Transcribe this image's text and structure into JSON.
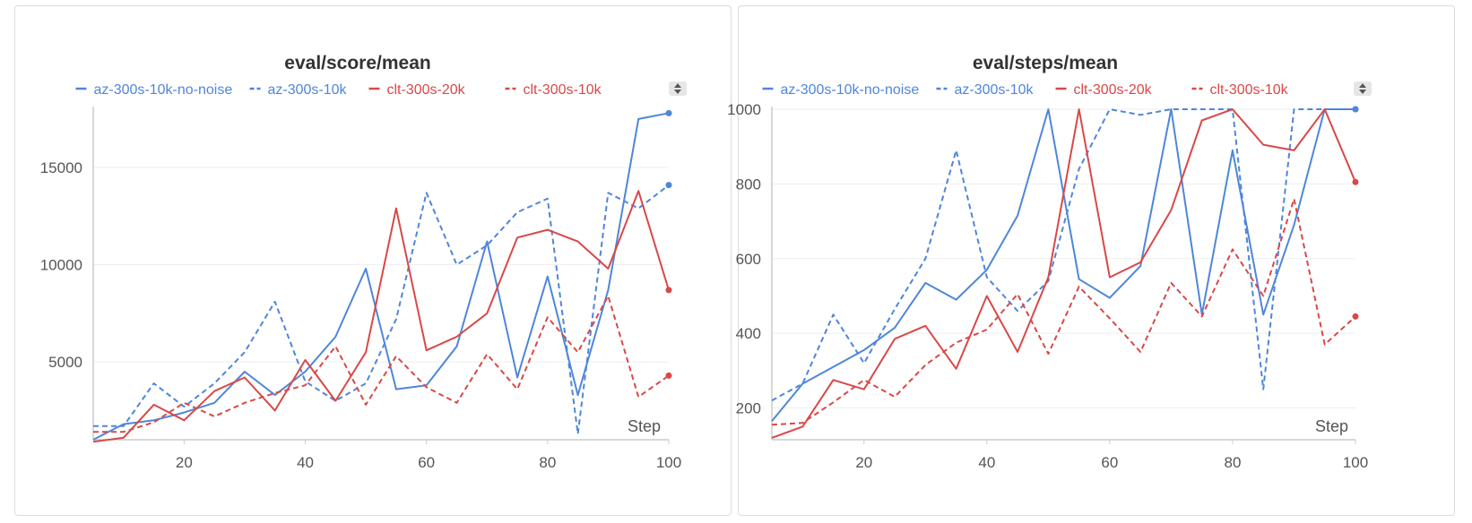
{
  "colors": {
    "blue": "#4f86d9",
    "red": "#d94848",
    "grid": "#eeeeee",
    "axis": "#cccccc"
  },
  "chart_data": [
    {
      "type": "line",
      "title": "eval/score/mean",
      "xlabel": "Step",
      "ylabel": "",
      "xlim": [
        5,
        100
      ],
      "ylim": [
        1000,
        18000
      ],
      "xticks": [
        20,
        40,
        60,
        80,
        100
      ],
      "yticks": [
        5000,
        10000,
        15000
      ],
      "legend_position": "top",
      "x": [
        5,
        10,
        15,
        20,
        25,
        30,
        35,
        40,
        45,
        50,
        55,
        60,
        65,
        70,
        75,
        80,
        85,
        90,
        95,
        100
      ],
      "series": [
        {
          "name": "az-300s-10k-no-noise",
          "color": "#4f86d9",
          "dash": "solid",
          "values": [
            1000,
            1800,
            2000,
            2400,
            2900,
            4500,
            3300,
            4500,
            6300,
            9800,
            3600,
            3800,
            5800,
            11200,
            4200,
            9400,
            3300,
            8700,
            17500,
            17800
          ]
        },
        {
          "name": "az-300s-10k",
          "color": "#4f86d9",
          "dash": "dashed",
          "values": [
            1700,
            1700,
            3900,
            2700,
            3900,
            5500,
            8100,
            4000,
            3000,
            3900,
            7200,
            13700,
            10000,
            11000,
            12700,
            13400,
            1300,
            13700,
            12900,
            14100
          ]
        },
        {
          "name": "clt-300s-20k",
          "color": "#d94848",
          "dash": "solid",
          "values": [
            900,
            1100,
            2800,
            2000,
            3500,
            4200,
            2500,
            5100,
            3000,
            5500,
            12900,
            5600,
            6300,
            7500,
            11400,
            11800,
            11200,
            9800,
            13800,
            8700
          ]
        },
        {
          "name": "clt-300s-10k",
          "color": "#d94848",
          "dash": "dashed",
          "values": [
            1400,
            1400,
            1900,
            2900,
            2200,
            2900,
            3400,
            3800,
            5800,
            2800,
            5300,
            3700,
            2900,
            5400,
            3600,
            7300,
            5500,
            8400,
            3200,
            4300
          ]
        }
      ]
    },
    {
      "type": "line",
      "title": "eval/steps/mean",
      "xlabel": "Step",
      "ylabel": "",
      "xlim": [
        5,
        100
      ],
      "ylim": [
        115,
        1000
      ],
      "xticks": [
        20,
        40,
        60,
        80,
        100
      ],
      "yticks": [
        200,
        400,
        600,
        800,
        1000
      ],
      "legend_position": "top",
      "x": [
        5,
        10,
        15,
        20,
        25,
        30,
        35,
        40,
        45,
        50,
        55,
        60,
        65,
        70,
        75,
        80,
        85,
        90,
        95,
        100
      ],
      "series": [
        {
          "name": "az-300s-10k-no-noise",
          "color": "#4f86d9",
          "dash": "solid",
          "values": [
            165,
            265,
            310,
            355,
            415,
            535,
            490,
            570,
            715,
            1000,
            545,
            495,
            580,
            1000,
            450,
            890,
            450,
            690,
            1000,
            1000
          ]
        },
        {
          "name": "az-300s-10k",
          "color": "#4f86d9",
          "dash": "dashed",
          "values": [
            220,
            265,
            450,
            320,
            465,
            600,
            890,
            550,
            460,
            540,
            840,
            1000,
            985,
            1000,
            1000,
            1000,
            250,
            1000,
            1000,
            1000
          ]
        },
        {
          "name": "clt-300s-20k",
          "color": "#d94848",
          "dash": "solid",
          "values": [
            120,
            150,
            275,
            250,
            385,
            420,
            305,
            500,
            350,
            550,
            1000,
            550,
            590,
            730,
            970,
            1000,
            905,
            890,
            1000,
            805
          ]
        },
        {
          "name": "clt-300s-10k",
          "color": "#d94848",
          "dash": "dashed",
          "values": [
            155,
            160,
            215,
            275,
            230,
            315,
            375,
            410,
            505,
            345,
            525,
            440,
            350,
            535,
            445,
            625,
            500,
            760,
            370,
            445
          ]
        }
      ]
    }
  ]
}
